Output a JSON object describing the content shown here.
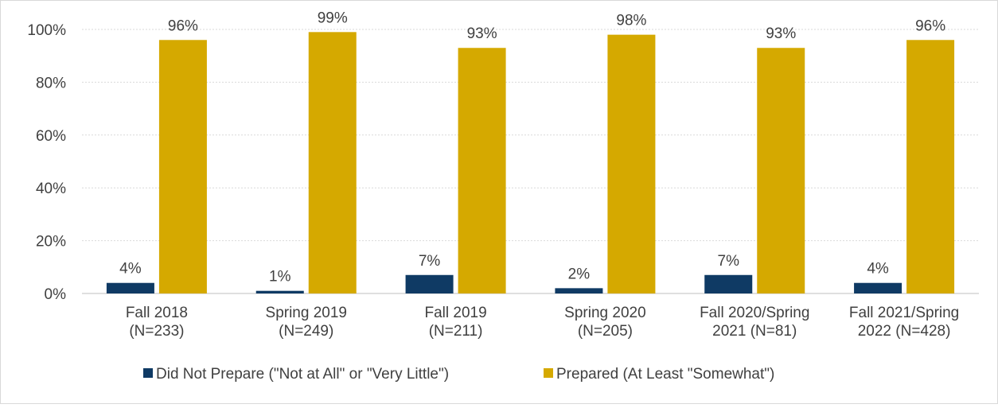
{
  "chart_data": {
    "type": "bar",
    "categories": [
      [
        "Fall 2018",
        "(N=233)"
      ],
      [
        "Spring 2019",
        "(N=249)"
      ],
      [
        "Fall 2019",
        "(N=211)"
      ],
      [
        "Spring 2020",
        "(N=205)"
      ],
      [
        "Fall 2020/Spring",
        "2021 (N=81)"
      ],
      [
        "Fall 2021/Spring",
        "2022 (N=428)"
      ]
    ],
    "series": [
      {
        "name": "Did Not Prepare (\"Not at All\" or \"Very Little\")",
        "color": "#0f3a64",
        "values": [
          4,
          1,
          7,
          2,
          7,
          4
        ],
        "value_labels": [
          "4%",
          "1%",
          "7%",
          "2%",
          "7%",
          "4%"
        ]
      },
      {
        "name": "Prepared (At Least \"Somewhat\")",
        "color": "#d5a900",
        "values": [
          96,
          99,
          93,
          98,
          93,
          96
        ],
        "value_labels": [
          "96%",
          "99%",
          "93%",
          "98%",
          "93%",
          "96%"
        ]
      }
    ],
    "ylim": [
      0,
      100
    ],
    "yticks": [
      {
        "value": 0,
        "label": "0%"
      },
      {
        "value": 20,
        "label": "20%"
      },
      {
        "value": 40,
        "label": "40%"
      },
      {
        "value": 60,
        "label": "60%"
      },
      {
        "value": 80,
        "label": "80%"
      },
      {
        "value": 100,
        "label": "100%"
      }
    ],
    "grid": true,
    "legend": "bottom"
  }
}
